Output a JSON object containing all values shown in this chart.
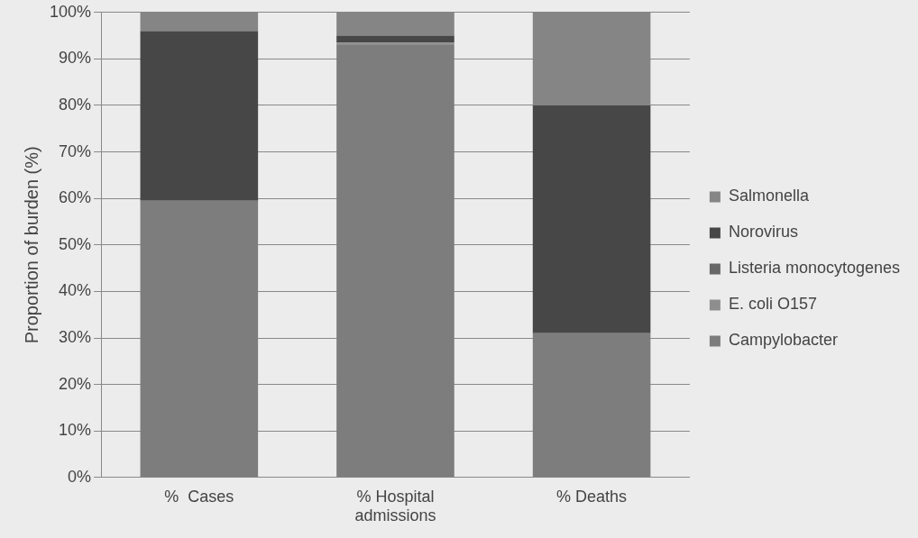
{
  "chart_data": {
    "type": "bar",
    "stacked": true,
    "ylabel": "Proportion of burden (%)",
    "categories": [
      "%  Cases",
      "% Hospital admissions",
      "% Deaths"
    ],
    "series": [
      {
        "name": "Campylobacter",
        "color": "#7d7d7d",
        "values": [
          59.5,
          93,
          31
        ]
      },
      {
        "name": "E. coli O157",
        "color": "#8e8e8e",
        "values": [
          0,
          0.5,
          0
        ]
      },
      {
        "name": "Listeria monocytogenes",
        "color": "#676767",
        "values": [
          0,
          0,
          0
        ]
      },
      {
        "name": "Norovirus",
        "color": "#474747",
        "values": [
          36.5,
          1.5,
          49
        ]
      },
      {
        "name": "Salmonella",
        "color": "#858585",
        "values": [
          4,
          5,
          20
        ]
      }
    ],
    "ylim": [
      0,
      100
    ],
    "yticks": [
      {
        "value": 0,
        "label": "0%"
      },
      {
        "value": 10,
        "label": "10%"
      },
      {
        "value": 20,
        "label": "20%"
      },
      {
        "value": 30,
        "label": "30%"
      },
      {
        "value": 40,
        "label": "40%"
      },
      {
        "value": 50,
        "label": "50%"
      },
      {
        "value": 60,
        "label": "60%"
      },
      {
        "value": 70,
        "label": "70%"
      },
      {
        "value": 80,
        "label": "80%"
      },
      {
        "value": 90,
        "label": "90%"
      },
      {
        "value": 100,
        "label": "100%"
      }
    ],
    "grid": "y",
    "legend": "right"
  }
}
